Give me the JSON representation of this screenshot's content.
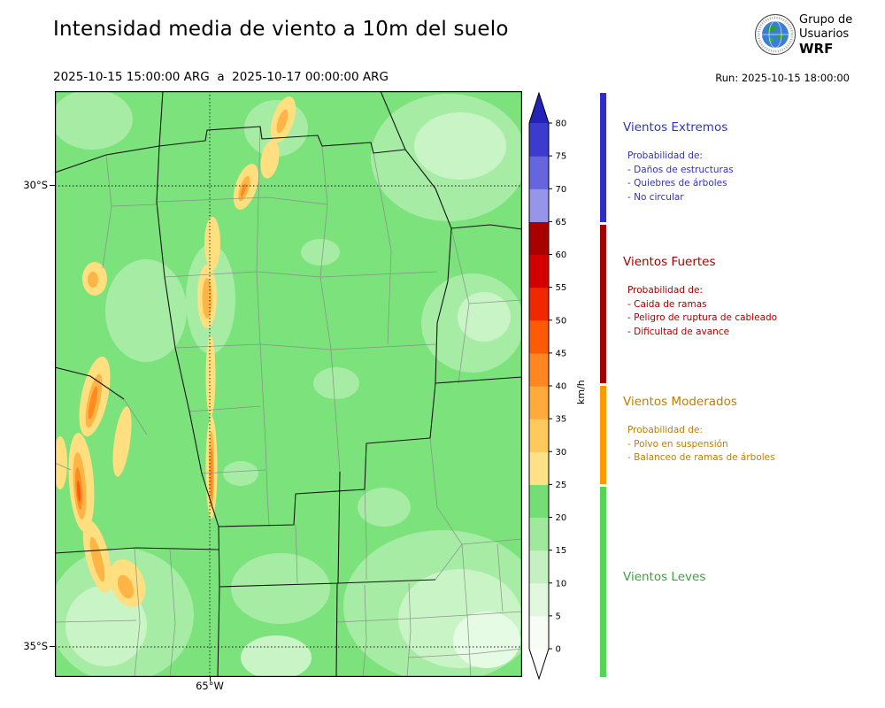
{
  "header": {
    "title": "Intensidad media de viento a 10m del suelo",
    "period": "2025-10-15 15:00:00 ARG  a  2025-10-17 00:00:00 ARG",
    "run": "Run: 2025-10-15 18:00:00",
    "logo": {
      "line1": "Grupo de",
      "line2": "Usuarios",
      "line3": "WRF"
    }
  },
  "map": {
    "lat_tick_top": "30°S",
    "lat_tick_bottom": "35°S",
    "lon_tick": "65°W"
  },
  "colorbar": {
    "unit": "km/h"
  },
  "legend": {
    "categories": [
      {
        "name": "Vientos Extremos",
        "color": "#3333bb",
        "strip_color": "#2d2dc8",
        "prob_title": "Probabilidad de:",
        "items": [
          "- Daños de estructuras",
          "- Quiebres de árboles",
          "- No circular"
        ]
      },
      {
        "name": "Vientos Fuertes",
        "color": "#aa0000",
        "strip_color": "#a50000",
        "prob_title": "Probabilidad de:",
        "items": [
          "- Caida de ramas",
          "- Peligro de ruptura de cableado",
          "- Dificultad de avance"
        ]
      },
      {
        "name": "Vientos Moderados",
        "color": "#c07e00",
        "strip_color": "#ff9900",
        "prob_title": "Probabilidad de:",
        "items": [
          "- Polvo en suspensión",
          "- Balanceo de ramas de árboles"
        ]
      },
      {
        "name": "Vientos Leves",
        "color": "#3fa040",
        "strip_color": "#55d455",
        "prob_title": "",
        "items": []
      }
    ]
  },
  "chart_data": {
    "type": "heatmap",
    "title": "Intensidad media de viento a 10m del suelo",
    "period_start": "2025-10-15 15:00:00 ARG",
    "period_end": "2025-10-17 00:00:00 ARG",
    "run": "2025-10-15 18:00:00",
    "unit": "km/h",
    "lat_ticks": [
      "30°S",
      "35°S"
    ],
    "lon_ticks": [
      "65°W"
    ],
    "colorbar": {
      "levels": [
        0,
        5,
        10,
        15,
        20,
        25,
        30,
        35,
        40,
        45,
        50,
        55,
        60,
        65,
        70,
        75,
        80
      ],
      "colors": [
        "#f7fcf5",
        "#e2f8de",
        "#c5f1c2",
        "#9fe89c",
        "#74de74",
        "#ffe287",
        "#ffc95e",
        "#ffab3c",
        "#ff8620",
        "#fc5a07",
        "#f02800",
        "#d40000",
        "#a80000",
        "#9595ea",
        "#6565dd",
        "#3b3bce"
      ],
      "over_color": "#2323b8",
      "under_color": "#ffffff",
      "extend": "both"
    },
    "categories": [
      {
        "label": "Vientos Extremos",
        "range_kmh": "65+"
      },
      {
        "label": "Vientos Fuertes",
        "range_kmh": "40-65"
      },
      {
        "label": "Vientos Moderados",
        "range_kmh": "25-40"
      },
      {
        "label": "Vientos Leves",
        "range_kmh": "0-25"
      }
    ]
  }
}
